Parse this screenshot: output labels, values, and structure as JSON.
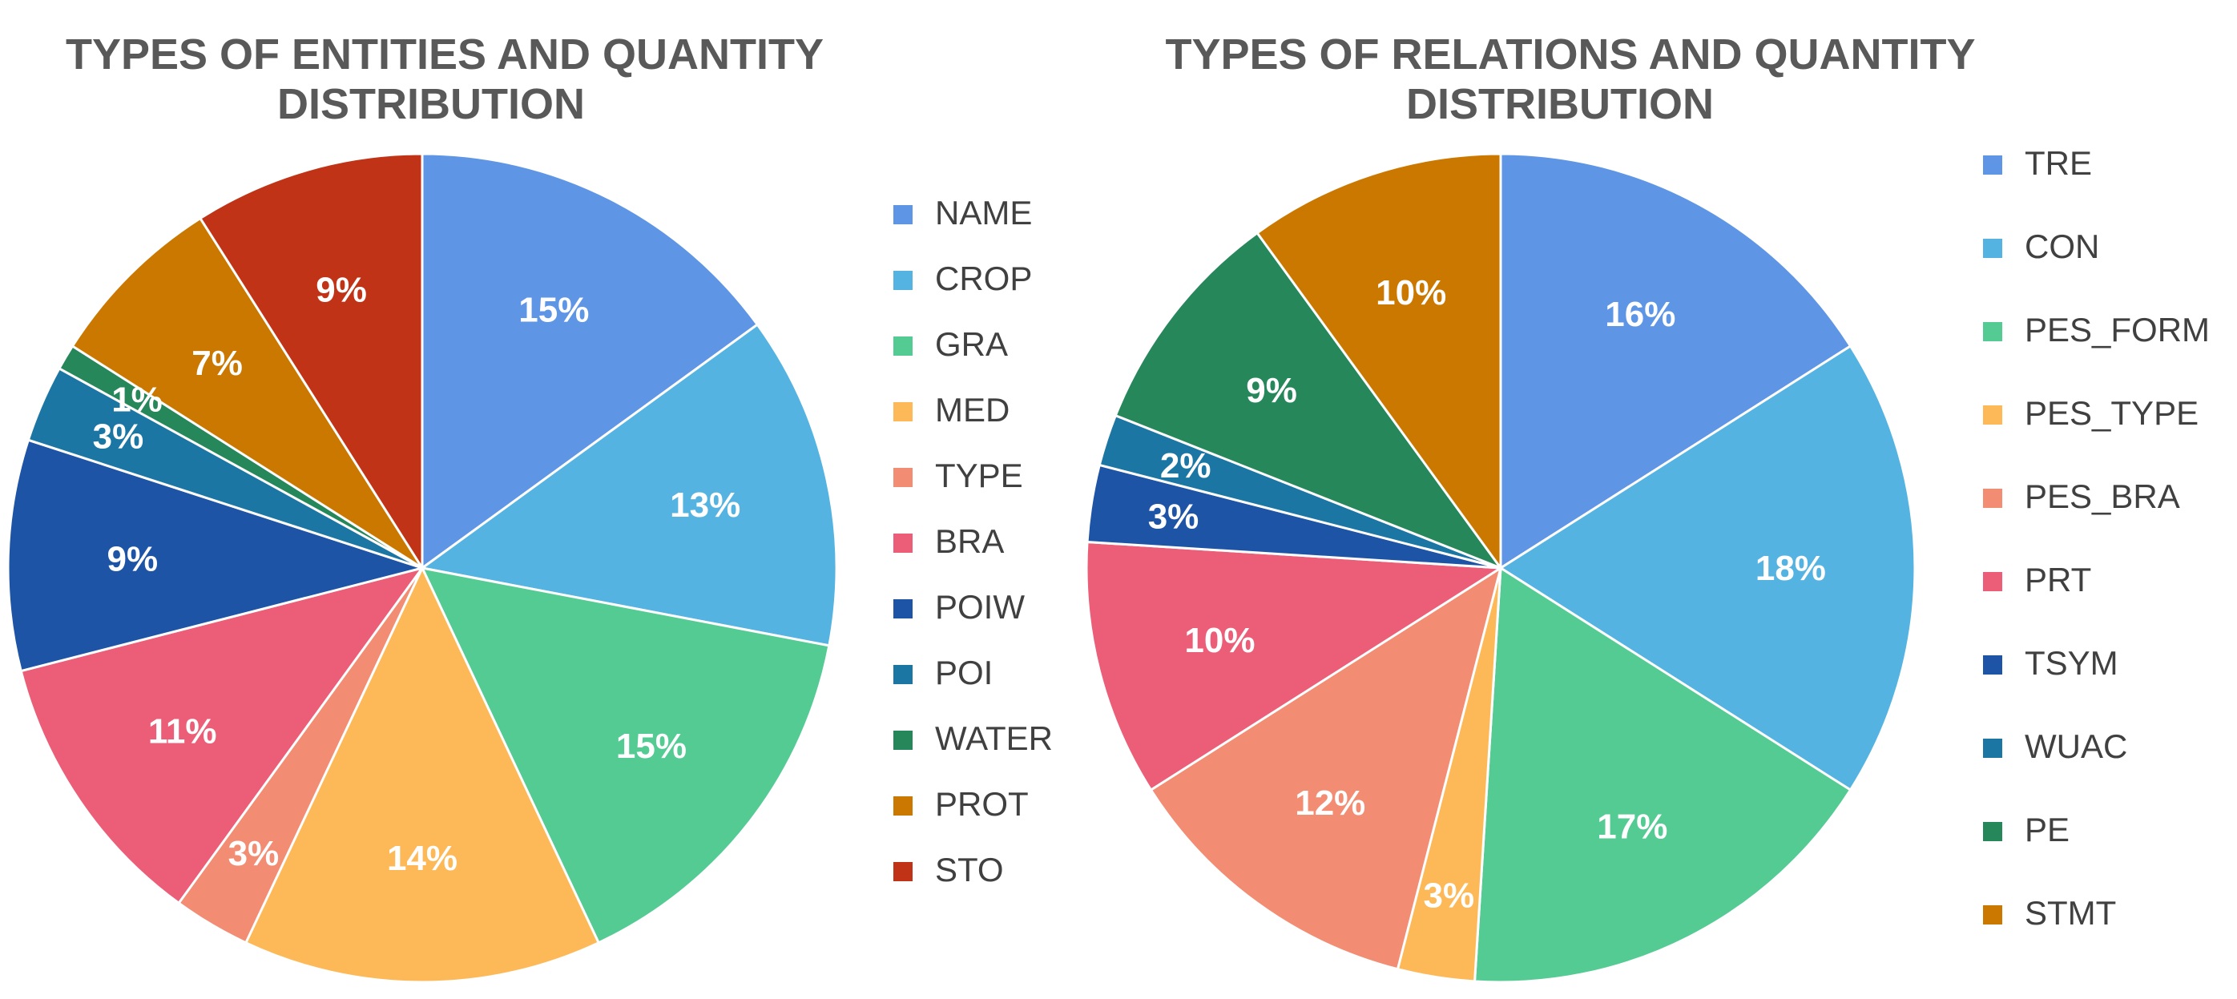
{
  "chart_data": [
    {
      "type": "pie",
      "title": [
        "TYPES OF ENTITIES AND  QUANTITY",
        "DISTRIBUTION"
      ],
      "categories": [
        "NAME",
        "CROP",
        "GRA",
        "MED",
        "TYPE",
        "BRA",
        "POIW",
        "POI",
        "WATER",
        "PROT",
        "STO"
      ],
      "values": [
        15,
        13,
        15,
        14,
        3,
        11,
        9,
        3,
        1,
        7,
        9
      ],
      "labels": [
        "15%",
        "13%",
        "15%",
        "14%",
        "3%",
        "11%",
        "9%",
        "3%",
        "1%",
        "7%",
        "9%"
      ],
      "colors": [
        "#5e95e5",
        "#55b3e2",
        "#55cb94",
        "#fdb957",
        "#f28c73",
        "#ec5e77",
        "#1e54a6",
        "#1c76a4",
        "#26875b",
        "#cb7800",
        "#c03317"
      ],
      "legend": "right"
    },
    {
      "type": "pie",
      "title": [
        "TYPES OF RELATIONS  AND   QUANTITY",
        "DISTRIBUTION"
      ],
      "categories": [
        "TRE",
        "CON",
        "PES_FORM",
        "PES_TYPE",
        "PES_BRA",
        "PRT",
        "TSYM",
        "WUAC",
        "PE",
        "STMT"
      ],
      "values": [
        16,
        18,
        17,
        3,
        12,
        10,
        3,
        2,
        9,
        10
      ],
      "labels": [
        "16%",
        "18%",
        "17%",
        "3%",
        "12%",
        "10%",
        "3%",
        "2%",
        "9%",
        "10%"
      ],
      "colors": [
        "#5e95e5",
        "#55b3e2",
        "#55cb94",
        "#fdb957",
        "#f28c73",
        "#ec5e77",
        "#1e54a6",
        "#1c76a4",
        "#26875b",
        "#cb7800"
      ],
      "legend": "right"
    }
  ]
}
